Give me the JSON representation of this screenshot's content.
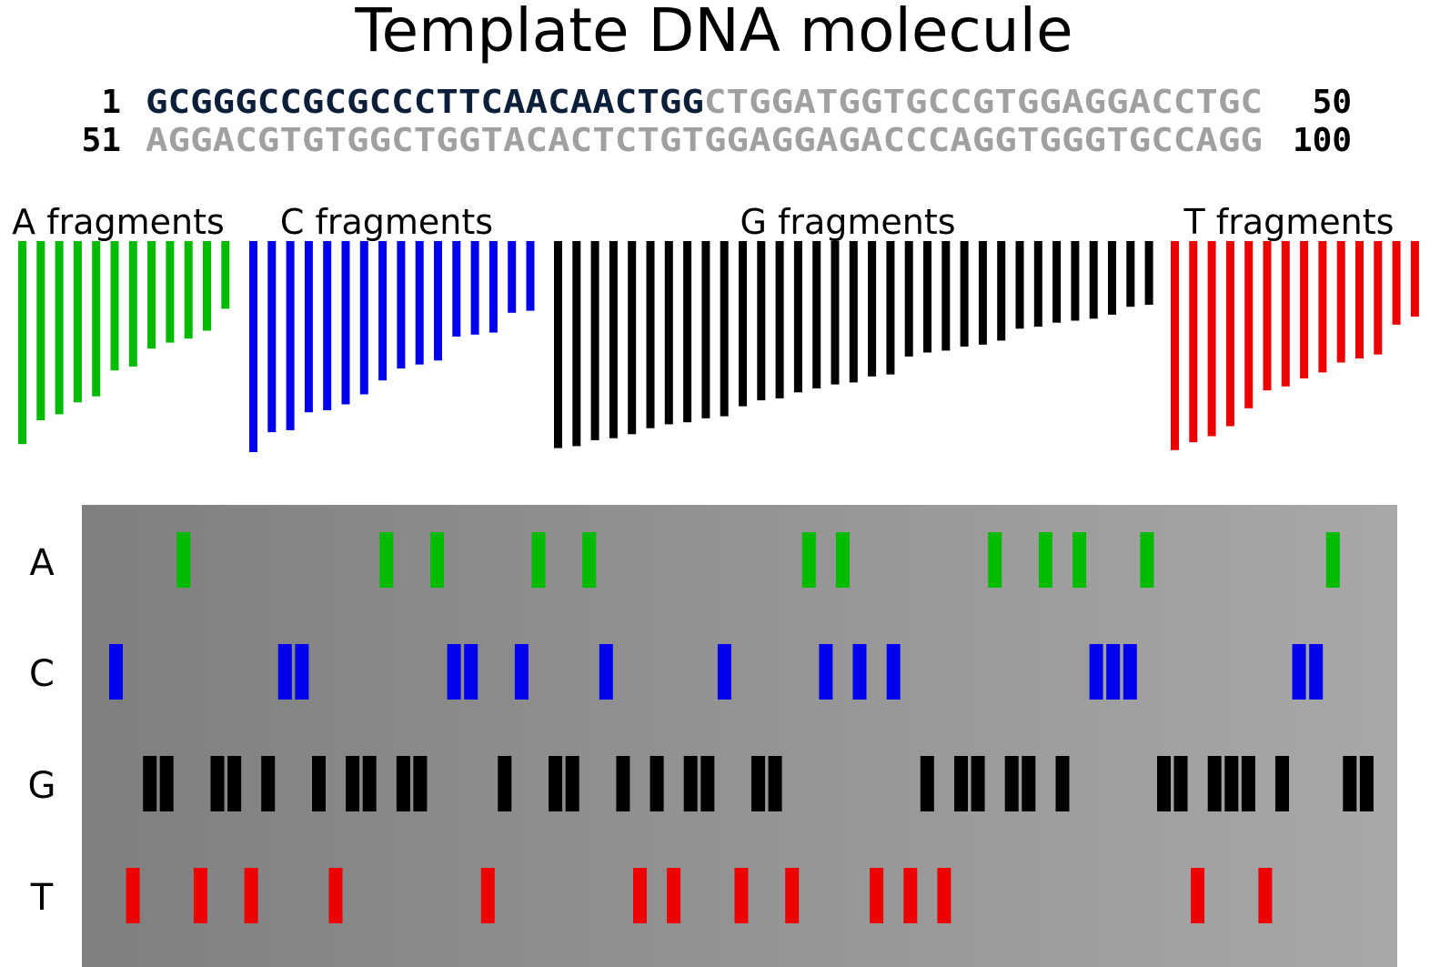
{
  "title": "Template DNA molecule",
  "sequence": {
    "lines": [
      {
        "start": "1",
        "end": "50",
        "bases": "GCGGGCCGCGCCCTTCAACAACTGGCTGGATGGTGCCGTGGAGGACCTGC"
      },
      {
        "start": "51",
        "end": "100",
        "bases": "AGGACGTGTGGCTGGTACACTCTGTGGAGGAGACCCAGGTGGGTGCCAGG"
      }
    ],
    "highlight_length": 25,
    "highlight_color": "#0b1f3a",
    "rest_color": "#a0a0a0"
  },
  "fragment_groups": [
    {
      "base": "A",
      "label": "A fragments",
      "color": "#00bb00"
    },
    {
      "base": "C",
      "label": "C fragments",
      "color": "#0000ee"
    },
    {
      "base": "G",
      "label": "G fragments",
      "color": "#000000"
    },
    {
      "base": "T",
      "label": "T fragments",
      "color": "#ee0000"
    }
  ],
  "lanes": [
    {
      "label": "A",
      "color": "#00bb00"
    },
    {
      "label": "C",
      "color": "#0000ee"
    },
    {
      "label": "G",
      "color": "#000000"
    },
    {
      "label": "T",
      "color": "#ee0000"
    }
  ],
  "gel_gradient": [
    "#7f7f7f",
    "#a8a8a8"
  ]
}
